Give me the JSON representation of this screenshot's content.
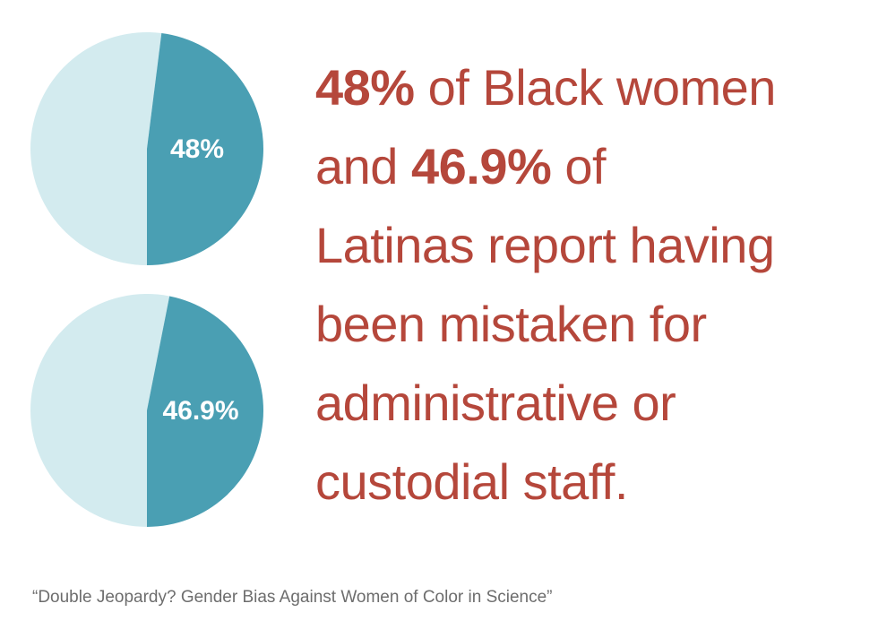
{
  "colors": {
    "pie_main": "#4a9fb3",
    "pie_rest": "#d3ebef",
    "headline": "#b5473b",
    "source": "#6d6d6d"
  },
  "chart_data": [
    {
      "type": "pie",
      "name": "Black women",
      "slices": [
        {
          "label": "48%",
          "value": 48
        },
        {
          "label": "",
          "value": 52
        }
      ]
    },
    {
      "type": "pie",
      "name": "Latinas",
      "slices": [
        {
          "label": "46.9%",
          "value": 46.9
        },
        {
          "label": "",
          "value": 53.1
        }
      ]
    }
  ],
  "headline": {
    "line1_bold": "48%",
    "line1_rest": " of Black women",
    "line2_pre": "and ",
    "line2_bold": "46.9%",
    "line2_rest": " of",
    "line3": "Latinas report having",
    "line4": "been mistaken for",
    "line5": "administrative or",
    "line6": "custodial staff."
  },
  "source": "“Double Jeopardy? Gender Bias Against Women of Color in Science”"
}
